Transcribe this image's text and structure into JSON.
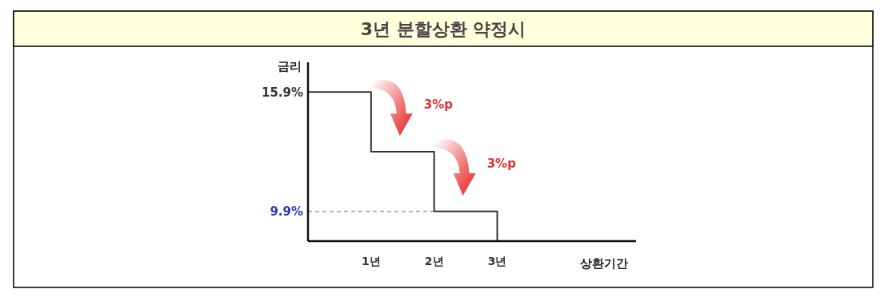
{
  "chart_data": {
    "type": "step",
    "title": "3년 분할상환 약정시",
    "ylabel": "금리",
    "xlabel": "상환기간",
    "x": [
      0,
      1,
      2,
      3,
      3
    ],
    "series": [
      {
        "color": "#333333",
        "values": [
          15.9,
          12.9,
          9.9,
          9.9,
          8.4
        ]
      }
    ],
    "xlim": [
      0,
      5.2
    ],
    "xticks": [
      {
        "value": 1,
        "label": "1년"
      },
      {
        "value": 2,
        "label": "2년"
      },
      {
        "value": 3,
        "label": "3년"
      }
    ],
    "ylim": [
      8.4,
      17.4
    ],
    "yticks": [
      {
        "value": 9.9,
        "label": "9.9%"
      },
      {
        "value": 15.9,
        "label": "15.9%"
      }
    ],
    "ref_lines": [
      {
        "axis": "y",
        "value": 9.9,
        "color": "#999999",
        "line_style": "dashed"
      }
    ],
    "annotations": [
      "3%p",
      "3%p"
    ],
    "line_style": "solid"
  }
}
